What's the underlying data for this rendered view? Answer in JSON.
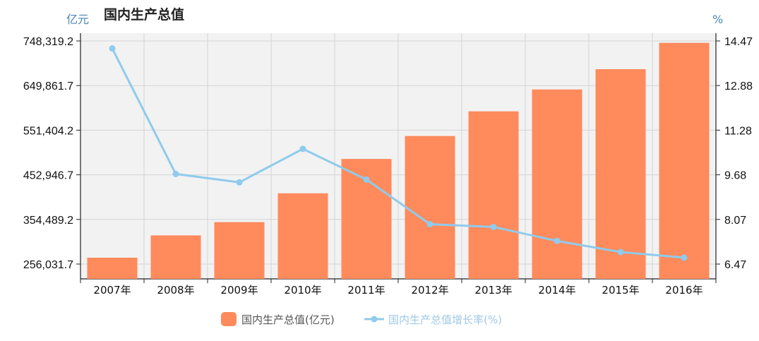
{
  "chart_data": {
    "type": "bar+line",
    "title": "国内生产总值",
    "left_unit": "亿元",
    "right_unit": "%",
    "categories": [
      "2007年",
      "2008年",
      "2009年",
      "2010年",
      "2011年",
      "2012年",
      "2013年",
      "2014年",
      "2015年",
      "2016年"
    ],
    "series": [
      {
        "name": "国内生产总值(亿元)",
        "type": "bar",
        "axis": "left",
        "color": "#ff8a5c",
        "values": [
          270092,
          319245,
          348517,
          412119,
          487940,
          538580,
          592963,
          641281,
          685993,
          744127
        ]
      },
      {
        "name": "国内生产总值增长率(%)",
        "type": "line",
        "axis": "right",
        "color": "#8fcbec",
        "values": [
          14.2,
          9.7,
          9.4,
          10.6,
          9.5,
          7.9,
          7.8,
          7.3,
          6.9,
          6.7
        ]
      }
    ],
    "left_axis": {
      "min": 256031.7,
      "max": 748319.2,
      "ticks": [
        "748,319.2",
        "649,861.7",
        "551,404.2",
        "452,946.7",
        "354,489.2",
        "256,031.7"
      ]
    },
    "right_axis": {
      "min": 6.47,
      "max": 14.47,
      "ticks": [
        "14.47",
        "12.88",
        "11.28",
        "9.68",
        "8.07",
        "6.47"
      ]
    },
    "grid": true,
    "legend_position": "bottom-center"
  }
}
